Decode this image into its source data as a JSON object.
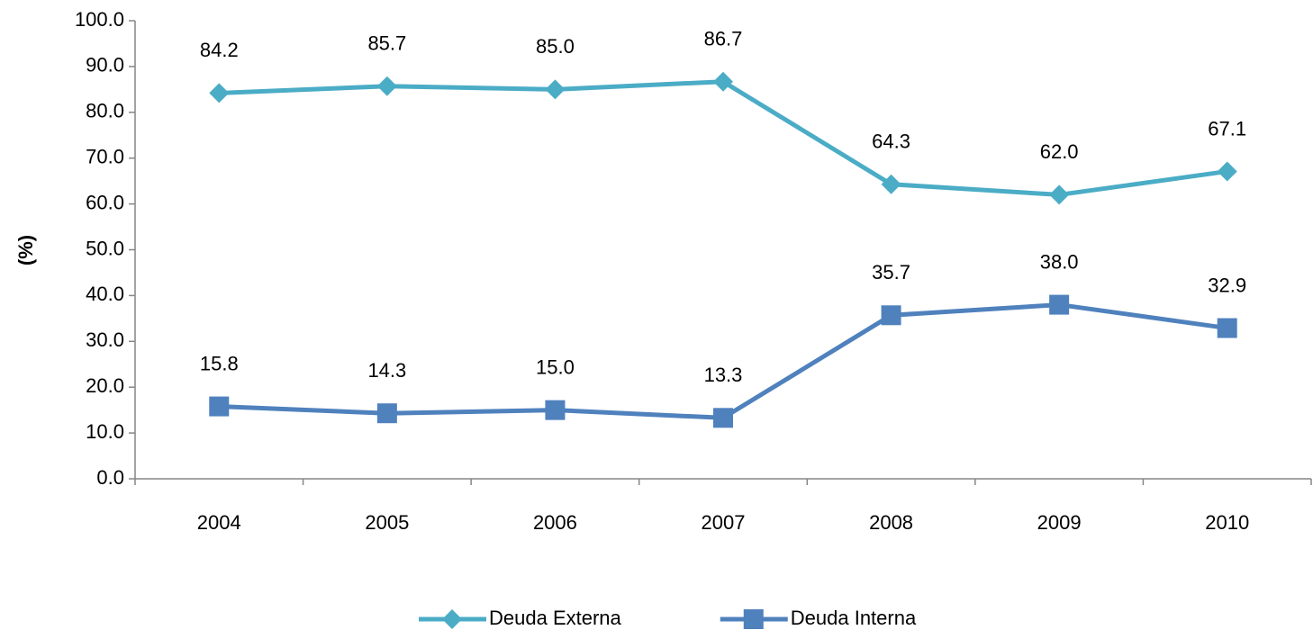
{
  "chart_data": {
    "type": "line",
    "ylabel": "(%)",
    "categories": [
      "2004",
      "2005",
      "2006",
      "2007",
      "2008",
      "2009",
      "2010"
    ],
    "series": [
      {
        "name": "Deuda Externa",
        "color": "#4bacc6",
        "marker": "diamond",
        "values": [
          84.2,
          85.7,
          85.0,
          86.7,
          64.3,
          62.0,
          67.1
        ],
        "value_labels": [
          "84.2",
          "85.7",
          "85.0",
          "86.7",
          "64.3",
          "62.0",
          "67.1"
        ]
      },
      {
        "name": "Deuda Interna",
        "color": "#4f81bd",
        "marker": "square",
        "values": [
          15.8,
          14.3,
          15.0,
          13.3,
          35.7,
          38.0,
          32.9
        ],
        "value_labels": [
          "15.8",
          "14.3",
          "15.0",
          "13.3",
          "35.7",
          "38.0",
          "32.9"
        ]
      }
    ],
    "ylim": [
      0,
      100
    ],
    "yticks": [
      {
        "value": 0,
        "label": "0.0"
      },
      {
        "value": 10,
        "label": "10.0"
      },
      {
        "value": 20,
        "label": "20.0"
      },
      {
        "value": 30,
        "label": "30.0"
      },
      {
        "value": 40,
        "label": "40.0"
      },
      {
        "value": 50,
        "label": "50.0"
      },
      {
        "value": 60,
        "label": "60.0"
      },
      {
        "value": 70,
        "label": "70.0"
      },
      {
        "value": 80,
        "label": "80.0"
      },
      {
        "value": 90,
        "label": "90.0"
      },
      {
        "value": 100,
        "label": "100.0"
      }
    ],
    "grid": false,
    "legend": "bottom"
  }
}
